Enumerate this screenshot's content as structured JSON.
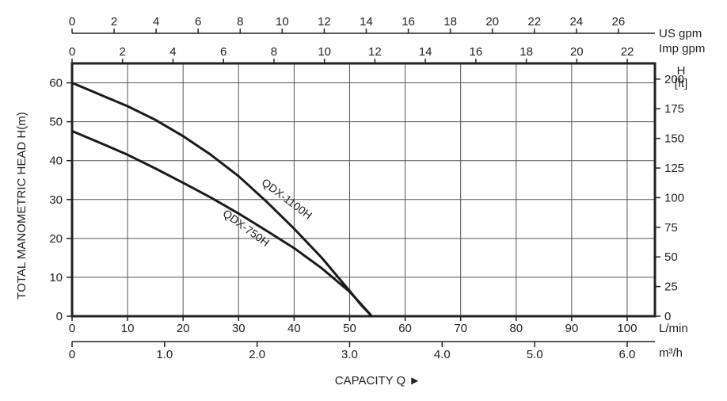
{
  "chart_data": {
    "type": "line",
    "title": "",
    "xlabel": "CAPACITY Q ►",
    "ylabel": "TOTAL MANOMETRIC HEAD  H(m)",
    "xlim": [
      0,
      105
    ],
    "ylim": [
      0,
      65
    ],
    "grid": true,
    "axes": {
      "x_lmin": {
        "unit": "L/min",
        "ticks": [
          0,
          10,
          20,
          30,
          40,
          50,
          60,
          70,
          80,
          90,
          100
        ]
      },
      "x_m3h": {
        "unit": "m³/h",
        "ticks": [
          "0",
          "1.0",
          "2.0",
          "3.0",
          "4.0",
          "5.0",
          "6.0"
        ]
      },
      "x_us_gpm": {
        "unit": "US gpm",
        "ticks": [
          0,
          2,
          4,
          6,
          8,
          10,
          12,
          14,
          16,
          18,
          20,
          22,
          24,
          26
        ]
      },
      "x_imp_gpm": {
        "unit": "Imp gpm",
        "ticks": [
          0,
          2,
          4,
          6,
          8,
          10,
          12,
          14,
          16,
          18,
          20,
          22
        ]
      },
      "y_m": {
        "unit": "H(m)",
        "ticks": [
          0,
          10,
          20,
          30,
          40,
          50,
          60
        ]
      },
      "y_ft": {
        "unit": "H\n[ft]",
        "unit_line1": "H",
        "unit_line2": "[ft]",
        "ticks": [
          0,
          25,
          50,
          75,
          100,
          125,
          150,
          175,
          200
        ]
      }
    },
    "series": [
      {
        "name": "QDX-1100H",
        "x": [
          0,
          5,
          10,
          15,
          20,
          25,
          30,
          35,
          40,
          45,
          50,
          52,
          54
        ],
        "y": [
          60,
          57,
          54,
          50.5,
          46.3,
          41.5,
          36,
          29.5,
          22.5,
          15,
          6.5,
          3,
          0
        ]
      },
      {
        "name": "QDX-750H",
        "x": [
          0,
          5,
          10,
          15,
          20,
          25,
          30,
          35,
          40,
          45,
          50,
          52,
          54
        ],
        "y": [
          47.6,
          44.6,
          41.5,
          38,
          34.3,
          30.5,
          26.4,
          22,
          17.5,
          12.3,
          6.3,
          3.2,
          0
        ]
      }
    ]
  }
}
